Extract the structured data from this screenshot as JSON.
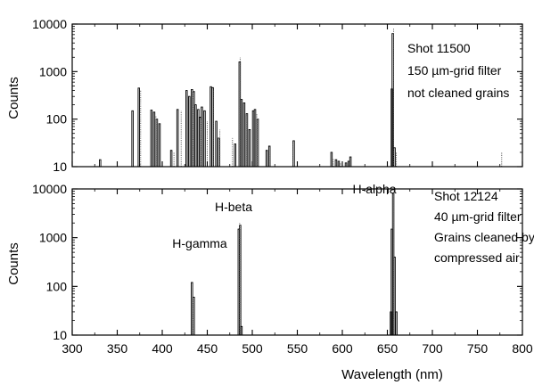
{
  "chart_data": [
    {
      "type": "line",
      "scale": "log",
      "xlim": [
        300,
        800
      ],
      "ylim": [
        10,
        10000
      ],
      "xticks": [
        300,
        350,
        400,
        450,
        500,
        550,
        600,
        650,
        700,
        750,
        800
      ],
      "yticks": [
        "10",
        "100",
        "1000",
        "10000"
      ],
      "ylabel": "Counts",
      "xlabel": "",
      "annotations": [
        "Shot 11500",
        "150 µm-grid filter",
        "not cleaned grains"
      ],
      "series": [
        {
          "style": "solid",
          "points": [
            [
              331,
              14
            ],
            [
              367,
              150
            ],
            [
              374,
              450
            ],
            [
              388,
              155
            ],
            [
              391,
              140
            ],
            [
              394,
              100
            ],
            [
              397,
              80
            ],
            [
              410,
              22
            ],
            [
              417,
              160
            ],
            [
              427,
              400
            ],
            [
              430,
              300
            ],
            [
              433,
              420
            ],
            [
              435,
              380
            ],
            [
              437,
              200
            ],
            [
              440,
              160
            ],
            [
              442,
              110
            ],
            [
              444,
              180
            ],
            [
              447,
              150
            ],
            [
              454,
              480
            ],
            [
              456,
              460
            ],
            [
              460,
              90
            ],
            [
              463,
              40
            ],
            [
              481,
              30
            ],
            [
              486,
              1600
            ],
            [
              488,
              260
            ],
            [
              491,
              220
            ],
            [
              494,
              130
            ],
            [
              497,
              60
            ],
            [
              501,
              150
            ],
            [
              503,
              160
            ],
            [
              506,
              100
            ],
            [
              516,
              22
            ],
            [
              519,
              27
            ],
            [
              546,
              35
            ],
            [
              588,
              20
            ],
            [
              593,
              14
            ],
            [
              596,
              13
            ],
            [
              604,
              12
            ],
            [
              607,
              13
            ],
            [
              609,
              16
            ],
            [
              655,
              430
            ],
            [
              656,
              6300
            ],
            [
              658,
              25
            ]
          ]
        },
        {
          "style": "dotted",
          "points": [
            [
              376,
              400
            ],
            [
              393,
              120
            ],
            [
              413,
              20
            ],
            [
              421,
              150
            ],
            [
              434,
              400
            ],
            [
              443,
              100
            ],
            [
              450,
              90
            ],
            [
              457,
              400
            ],
            [
              464,
              60
            ],
            [
              478,
              40
            ],
            [
              486.5,
              2000
            ],
            [
              493,
              120
            ],
            [
              505,
              130
            ],
            [
              520,
              25
            ],
            [
              545,
              30
            ],
            [
              590,
              15
            ],
            [
              598,
              12
            ],
            [
              657,
              8000
            ],
            [
              660,
              20
            ],
            [
              777,
              20
            ]
          ]
        }
      ]
    },
    {
      "type": "line",
      "scale": "log",
      "xlim": [
        300,
        800
      ],
      "ylim": [
        10,
        10000
      ],
      "xticks": [
        300,
        350,
        400,
        450,
        500,
        550,
        600,
        650,
        700,
        750,
        800
      ],
      "yticks": [
        "10",
        "100",
        "1000",
        "10000"
      ],
      "ylabel": "Counts",
      "xlabel": "Wavelength (nm)",
      "annotations": [
        "Shot 12124",
        "40 µm-grid filter",
        "Grains cleaned by",
        "compressed air"
      ],
      "peak_labels": [
        "H-gamma",
        "H-beta",
        "H-alpha"
      ],
      "series": [
        {
          "style": "solid",
          "points": [
            [
              433,
              120
            ],
            [
              435,
              60
            ],
            [
              485,
              1500
            ],
            [
              486.5,
              1800
            ],
            [
              488,
              15
            ],
            [
              654,
              30
            ],
            [
              655,
              1500
            ],
            [
              656.5,
              8000
            ],
            [
              658,
              400
            ],
            [
              660,
              30
            ]
          ]
        },
        {
          "style": "dotted",
          "points": [
            [
              434,
              100
            ],
            [
              486,
              2000
            ],
            [
              657,
              8500
            ]
          ]
        }
      ]
    }
  ]
}
